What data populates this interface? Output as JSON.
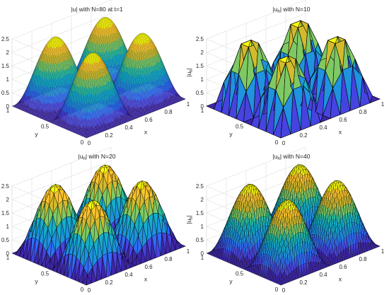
{
  "colormap": [
    "#3e26a8",
    "#4743e0",
    "#2f6df7",
    "#1f92e0",
    "#15aeca",
    "#2dc09f",
    "#7fc964",
    "#d4bb2e",
    "#fdc52d",
    "#f9fb0e"
  ],
  "panels": [
    {
      "name": "exact",
      "title_parts": [
        "|u| with N=80 at t=1"
      ],
      "zlabel_parts": [
        "|u|"
      ],
      "xlabel": "x",
      "ylabel": "y",
      "x_ticks": [
        "0",
        "0.2",
        "0.4",
        "0.6",
        "0.8",
        "1"
      ],
      "y_ticks": [
        "0",
        "0.5",
        "1"
      ],
      "z_ticks": [
        "0",
        "0.5",
        "1",
        "1.5",
        "2",
        "2.5"
      ],
      "chart_data": {
        "type": "surface",
        "function": "|u| = 2.5 * |sin(2*pi*x) * sin(2*pi*y)|",
        "mesh_N": 80,
        "z_max": 2.5,
        "xlim": [
          0,
          1
        ],
        "ylim": [
          0,
          1
        ],
        "zlim": [
          0,
          2.5
        ]
      }
    },
    {
      "name": "n10",
      "title_parts": [
        "|u",
        "h",
        "| with N=10"
      ],
      "zlabel_parts": [
        "|u",
        "h",
        "|"
      ],
      "xlabel": "x",
      "ylabel": "y",
      "x_ticks": [
        "0",
        "0.2",
        "0.4",
        "0.6",
        "0.8",
        "1"
      ],
      "y_ticks": [
        "0",
        "0.5",
        "1"
      ],
      "z_ticks": [
        "0",
        "0.5",
        "1",
        "1.5",
        "2",
        "2.5"
      ],
      "chart_data": {
        "type": "surface",
        "function": "|u_h| piecewise-linear interpolant",
        "mesh_N": 10,
        "z_max": 2.5,
        "xlim": [
          0,
          1
        ],
        "ylim": [
          0,
          1
        ],
        "zlim": [
          0,
          2.5
        ]
      }
    },
    {
      "name": "n20",
      "title_parts": [
        "|u",
        "h",
        "| with N=20"
      ],
      "zlabel_parts": [
        "|u",
        "h",
        "|"
      ],
      "xlabel": "x",
      "ylabel": "y",
      "x_ticks": [
        "0",
        "0.2",
        "0.4",
        "0.6",
        "0.8",
        "1"
      ],
      "y_ticks": [
        "0",
        "0.5",
        "1"
      ],
      "z_ticks": [
        "0",
        "0.5",
        "1",
        "1.5",
        "2",
        "2.5"
      ],
      "chart_data": {
        "type": "surface",
        "function": "|u_h| piecewise-linear interpolant",
        "mesh_N": 20,
        "z_max": 2.5,
        "xlim": [
          0,
          1
        ],
        "ylim": [
          0,
          1
        ],
        "zlim": [
          0,
          2.5
        ]
      }
    },
    {
      "name": "n40",
      "title_parts": [
        "|u",
        "h",
        "| with N=40"
      ],
      "zlabel_parts": [
        "|u",
        "h",
        "|"
      ],
      "xlabel": "x",
      "ylabel": "y",
      "x_ticks": [
        "0",
        "0.2",
        "0.4",
        "0.6",
        "0.8",
        "1"
      ],
      "y_ticks": [
        "0",
        "0.5",
        "1"
      ],
      "z_ticks": [
        "0",
        "0.5",
        "1",
        "1.5",
        "2",
        "2.5"
      ],
      "chart_data": {
        "type": "surface",
        "function": "|u_h| piecewise-linear interpolant",
        "mesh_N": 40,
        "z_max": 2.5,
        "xlim": [
          0,
          1
        ],
        "ylim": [
          0,
          1
        ],
        "zlim": [
          0,
          2.5
        ]
      }
    }
  ]
}
